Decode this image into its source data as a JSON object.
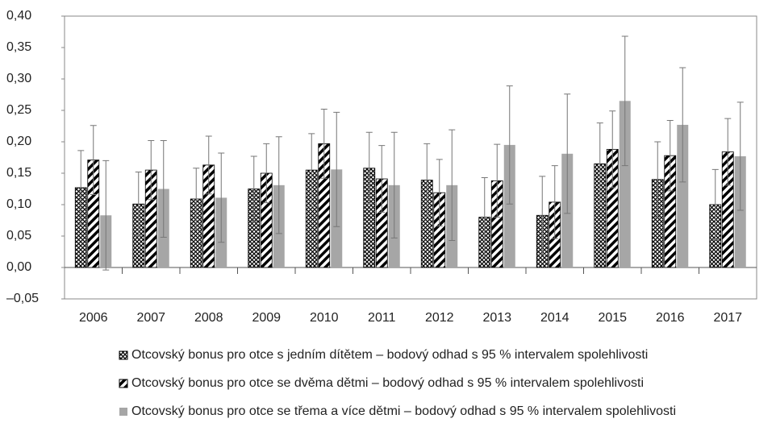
{
  "chart_data": {
    "type": "bar",
    "categories": [
      "2006",
      "2007",
      "2008",
      "2009",
      "2010",
      "2011",
      "2012",
      "2013",
      "2014",
      "2015",
      "2016",
      "2017"
    ],
    "series": [
      {
        "name": "Otcovský bonus pro otce s jedním dítětem – bodový odhad s 95 % intervalem spolehlivosti",
        "color": "#000000",
        "pattern": "crosshatch",
        "values": [
          0.127,
          0.101,
          0.109,
          0.125,
          0.155,
          0.158,
          0.139,
          0.08,
          0.083,
          0.165,
          0.14,
          0.1
        ],
        "errors": [
          0.059,
          0.051,
          0.049,
          0.052,
          0.058,
          0.057,
          0.058,
          0.063,
          0.062,
          0.065,
          0.06,
          0.056
        ]
      },
      {
        "name": "Otcovský bonus pro otce se dvěma dětmi – bodový odhad s 95 % intervalem spolehlivosti",
        "color": "#000000",
        "pattern": "diagonal",
        "values": [
          0.171,
          0.155,
          0.163,
          0.15,
          0.197,
          0.141,
          0.119,
          0.138,
          0.104,
          0.188,
          0.178,
          0.184
        ],
        "errors": [
          0.055,
          0.047,
          0.046,
          0.047,
          0.055,
          0.053,
          0.053,
          0.058,
          0.058,
          0.061,
          0.056,
          0.053
        ]
      },
      {
        "name": "Otcovský bonus pro otce se třema a více dětmi – bodový odhad s 95 % intervalem spolehlivosti",
        "color": "#a6a6a6",
        "pattern": "solid",
        "values": [
          0.083,
          0.125,
          0.111,
          0.131,
          0.156,
          0.131,
          0.131,
          0.195,
          0.181,
          0.265,
          0.227,
          0.177
        ],
        "errors": [
          0.087,
          0.077,
          0.071,
          0.077,
          0.091,
          0.084,
          0.088,
          0.094,
          0.095,
          0.103,
          0.091,
          0.086
        ]
      }
    ],
    "ylim": [
      -0.05,
      0.4
    ],
    "yticks": [
      {
        "value": -0.05,
        "label": "–0,05"
      },
      {
        "value": 0,
        "label": "0,00"
      },
      {
        "value": 0.05,
        "label": "0,05"
      },
      {
        "value": 0.1,
        "label": "0,10"
      },
      {
        "value": 0.15,
        "label": "0,15"
      },
      {
        "value": 0.2,
        "label": "0,20"
      },
      {
        "value": 0.25,
        "label": "0,25"
      },
      {
        "value": 0.3,
        "label": "0,30"
      },
      {
        "value": 0.35,
        "label": "0,35"
      },
      {
        "value": 0.4,
        "label": "0,40"
      }
    ],
    "grid": false,
    "legend": "bottom"
  }
}
